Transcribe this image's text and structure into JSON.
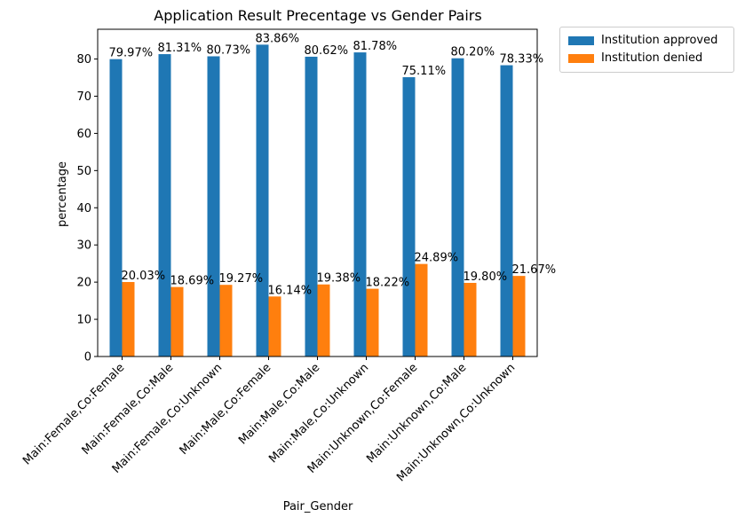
{
  "chart_data": {
    "type": "bar",
    "title": "Application Result Precentage vs Gender Pairs",
    "xlabel": "Pair_Gender",
    "ylabel": "percentage",
    "ylim": [
      0,
      88
    ],
    "yticks": [
      "0",
      "10",
      "20",
      "30",
      "40",
      "50",
      "60",
      "70",
      "80"
    ],
    "grid": false,
    "legend_position": "outside-top-right",
    "categories": [
      "Main:Female,Co:Female",
      "Main:Female,Co:Male",
      "Main:Female,Co:Unknown",
      "Main:Male,Co:Female",
      "Main:Male,Co:Male",
      "Main:Male,Co:Unknown",
      "Main:Unknown,Co:Female",
      "Main:Unknown,Co:Male",
      "Main:Unknown,Co:Unknown"
    ],
    "series": [
      {
        "name": "Institution approved",
        "color": "#1f77b4",
        "values": [
          79.97,
          81.31,
          80.73,
          83.86,
          80.62,
          81.78,
          75.11,
          80.2,
          78.33
        ],
        "labels": [
          "79.97%",
          "81.31%",
          "80.73%",
          "83.86%",
          "80.62%",
          "81.78%",
          "75.11%",
          "80.20%",
          "78.33%"
        ]
      },
      {
        "name": "Institution denied",
        "color": "#ff7f0e",
        "values": [
          20.03,
          18.69,
          19.27,
          16.14,
          19.38,
          18.22,
          24.89,
          19.8,
          21.67
        ],
        "labels": [
          "20.03%",
          "18.69%",
          "19.27%",
          "16.14%",
          "19.38%",
          "18.22%",
          "24.89%",
          "19.80%",
          "21.67%"
        ]
      }
    ]
  }
}
